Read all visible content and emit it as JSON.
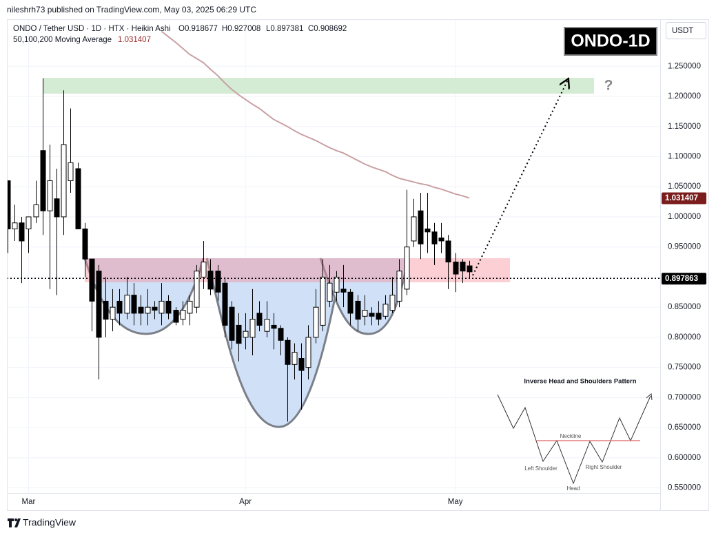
{
  "header": {
    "published": "nileshrh73 published on TradingView.com, May 03, 2025 06:29 UTC",
    "symbol": "ONDO / Tether USD · 1D · HTX · Heikin Ashi",
    "ohlc": [
      "O0.918677",
      "H0.927008",
      "L0.897381",
      "C0.908692"
    ],
    "badge": "ONDO-1D",
    "currency": "USDT",
    "logo": "TradingView"
  },
  "chart_data": {
    "type": "candlestick",
    "open": [
      1.06,
      0.98,
      0.99,
      0.98,
      1.0,
      1.11,
      1.01,
      1.03,
      1.0,
      1.06,
      1.08,
      0.98,
      0.93,
      0.91,
      0.86,
      0.83,
      0.86,
      0.84,
      0.87,
      0.85,
      0.84,
      0.85,
      0.84,
      0.86,
      0.845,
      0.83,
      0.84,
      0.85,
      0.9,
      0.91,
      0.91,
      0.89,
      0.85,
      0.82,
      0.8,
      0.8,
      0.84,
      0.81,
      0.82,
      0.815,
      0.795,
      0.755,
      0.765,
      0.75,
      0.8,
      0.82,
      0.86,
      0.875,
      0.88,
      0.875,
      0.86,
      0.835,
      0.84,
      0.84,
      0.835,
      0.845,
      0.86,
      0.88,
      0.96,
      1.01,
      0.98,
      0.975,
      0.965,
      0.96,
      0.925,
      0.925,
      0.918677
    ],
    "high": [
      1.06,
      1.02,
      1.0,
      1.0,
      1.06,
      1.23,
      1.12,
      1.08,
      1.21,
      1.18,
      1.09,
      0.99,
      0.93,
      0.92,
      0.9,
      0.88,
      0.88,
      0.9,
      0.89,
      0.87,
      0.88,
      0.86,
      0.89,
      0.87,
      0.85,
      0.86,
      0.87,
      0.92,
      0.96,
      0.93,
      0.92,
      0.9,
      0.86,
      0.84,
      0.84,
      0.88,
      0.86,
      0.86,
      0.84,
      0.82,
      0.8,
      0.79,
      0.79,
      0.82,
      0.88,
      0.93,
      0.92,
      0.91,
      0.92,
      0.88,
      0.87,
      0.87,
      0.85,
      0.86,
      0.87,
      0.9,
      0.93,
      1.045,
      1.03,
      1.04,
      1.04,
      0.99,
      0.99,
      0.97,
      0.94,
      0.93,
      0.927008
    ],
    "low": [
      0.94,
      0.96,
      0.89,
      0.94,
      0.99,
      0.97,
      0.88,
      0.87,
      0.97,
      1.04,
      0.98,
      0.9,
      0.81,
      0.73,
      0.8,
      0.81,
      0.82,
      0.83,
      0.82,
      0.82,
      0.82,
      0.83,
      0.82,
      0.83,
      0.82,
      0.82,
      0.82,
      0.84,
      0.88,
      0.87,
      0.86,
      0.8,
      0.78,
      0.76,
      0.78,
      0.77,
      0.81,
      0.8,
      0.78,
      0.77,
      0.66,
      0.73,
      0.68,
      0.73,
      0.79,
      0.81,
      0.85,
      0.86,
      0.85,
      0.82,
      0.81,
      0.82,
      0.82,
      0.82,
      0.83,
      0.84,
      0.85,
      0.87,
      0.95,
      0.93,
      0.94,
      0.92,
      0.94,
      0.88,
      0.875,
      0.89,
      0.897381
    ],
    "close": [
      0.98,
      0.99,
      0.96,
      1.0,
      1.02,
      1.01,
      1.06,
      1.0,
      1.12,
      1.09,
      0.98,
      0.93,
      0.86,
      0.8,
      0.83,
      0.85,
      0.84,
      0.87,
      0.84,
      0.84,
      0.85,
      0.845,
      0.86,
      0.84,
      0.825,
      0.845,
      0.86,
      0.91,
      0.925,
      0.88,
      0.875,
      0.82,
      0.795,
      0.79,
      0.81,
      0.83,
      0.82,
      0.83,
      0.815,
      0.795,
      0.755,
      0.775,
      0.745,
      0.8,
      0.85,
      0.9,
      0.89,
      0.9,
      0.875,
      0.84,
      0.83,
      0.845,
      0.835,
      0.83,
      0.855,
      0.87,
      0.91,
      0.95,
      1.0,
      0.955,
      0.975,
      0.955,
      0.96,
      0.925,
      0.905,
      0.91,
      0.908692
    ],
    "up_color": "#ffffff",
    "down_color": "#000000",
    "moving_average": {
      "name": "50,100,200 Moving Average",
      "color": "#c9a0a4",
      "values": [
        null,
        null,
        null,
        null,
        null,
        null,
        null,
        null,
        null,
        null,
        null,
        null,
        null,
        null,
        null,
        null,
        null,
        null,
        null,
        null,
        null,
        null,
        1.308,
        1.299,
        1.29,
        1.28,
        1.27,
        1.263,
        1.256,
        1.245,
        1.235,
        1.223,
        1.212,
        1.203,
        1.195,
        1.187,
        1.18,
        1.171,
        1.162,
        1.156,
        1.15,
        1.143,
        1.137,
        1.132,
        1.127,
        1.121,
        1.115,
        1.11,
        1.106,
        1.1,
        1.094,
        1.088,
        1.083,
        1.079,
        1.075,
        1.069,
        1.064,
        1.061,
        1.058,
        1.055,
        1.053,
        1.049,
        1.046,
        1.042,
        1.038,
        1.035,
        1.031407
      ]
    },
    "last_price": 0.897863,
    "xlim": [
      -0.1,
      93.3
    ],
    "xticks": [
      {
        "value": 3,
        "label": "Mar"
      },
      {
        "value": 34,
        "label": "Apr"
      },
      {
        "value": 64,
        "label": "May"
      }
    ],
    "ylim": [
      0.513,
      1.328
    ],
    "yticks": [
      {
        "value": 1.25,
        "label": "1.250000"
      },
      {
        "value": 1.2,
        "label": "1.200000"
      },
      {
        "value": 1.15,
        "label": "1.150000"
      },
      {
        "value": 1.1,
        "label": "1.100000"
      },
      {
        "value": 1.05,
        "label": "1.050000"
      },
      {
        "value": 1.0,
        "label": "1.000000"
      },
      {
        "value": 0.95,
        "label": "0.950000"
      },
      {
        "value": 0.9,
        "label": "0.900000"
      },
      {
        "value": 0.85,
        "label": "0.850000"
      },
      {
        "value": 0.8,
        "label": "0.800000"
      },
      {
        "value": 0.75,
        "label": "0.750000"
      },
      {
        "value": 0.7,
        "label": "0.700000"
      },
      {
        "value": 0.65,
        "label": "0.650000"
      },
      {
        "value": 0.6,
        "label": "0.600000"
      },
      {
        "value": 0.55,
        "label": "0.550000"
      }
    ],
    "grid": true,
    "annotations": {
      "question": "?",
      "pattern_title": "Inverse Head and Shoulders Pattern",
      "neckline": "Neckline",
      "left_shoulder": "Left Shoulder",
      "head": "Head",
      "right_shoulder": "Right Shoulder"
    }
  }
}
